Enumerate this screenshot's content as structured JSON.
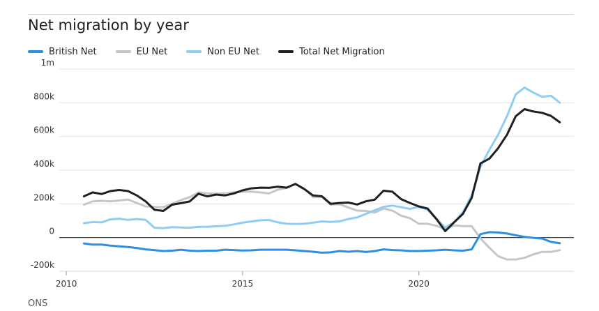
{
  "title": "Net migration by year",
  "source": "ONS",
  "colors": {
    "british": "#2e8fe0",
    "eu": "#c4c6c9",
    "noneu": "#8fcdf3",
    "total": "#1f1f1f",
    "grid": "#e3e3e3",
    "zero": "#222222"
  },
  "chart_data": {
    "type": "line",
    "title": "Net migration by year",
    "xlabel": "",
    "ylabel": "",
    "xlim": [
      2009.8,
      2024.4
    ],
    "ylim": [
      -200000,
      1000000
    ],
    "grid": true,
    "legend_position": "top-left",
    "x_ticks": [
      {
        "value": 2010,
        "label": "2010"
      },
      {
        "value": 2015,
        "label": "2015"
      },
      {
        "value": 2020,
        "label": "2020"
      }
    ],
    "y_ticks": [
      {
        "value": 1000000,
        "label": "1m"
      },
      {
        "value": 800000,
        "label": "800k"
      },
      {
        "value": 600000,
        "label": "600k"
      },
      {
        "value": 400000,
        "label": "400k"
      },
      {
        "value": 200000,
        "label": "200k"
      },
      {
        "value": 0,
        "label": "0"
      },
      {
        "value": -200000,
        "label": "-200k"
      }
    ],
    "series": [
      {
        "key": "british",
        "name": "British Net",
        "points": [
          [
            2010.5,
            -35000
          ],
          [
            2010.75,
            -42000
          ],
          [
            2011.0,
            -42000
          ],
          [
            2011.25,
            -48000
          ],
          [
            2011.5,
            -52000
          ],
          [
            2011.75,
            -56000
          ],
          [
            2012.0,
            -62000
          ],
          [
            2012.25,
            -70000
          ],
          [
            2012.5,
            -75000
          ],
          [
            2012.75,
            -80000
          ],
          [
            2013.0,
            -78000
          ],
          [
            2013.25,
            -72000
          ],
          [
            2013.5,
            -78000
          ],
          [
            2013.75,
            -80000
          ],
          [
            2014.0,
            -78000
          ],
          [
            2014.25,
            -78000
          ],
          [
            2014.5,
            -72000
          ],
          [
            2014.75,
            -74000
          ],
          [
            2015.0,
            -77000
          ],
          [
            2015.25,
            -76000
          ],
          [
            2015.5,
            -72000
          ],
          [
            2015.75,
            -72000
          ],
          [
            2016.0,
            -72000
          ],
          [
            2016.25,
            -72000
          ],
          [
            2016.5,
            -76000
          ],
          [
            2016.75,
            -80000
          ],
          [
            2017.0,
            -84000
          ],
          [
            2017.25,
            -90000
          ],
          [
            2017.5,
            -88000
          ],
          [
            2017.75,
            -80000
          ],
          [
            2018.0,
            -84000
          ],
          [
            2018.25,
            -80000
          ],
          [
            2018.5,
            -86000
          ],
          [
            2018.75,
            -80000
          ],
          [
            2019.0,
            -70000
          ],
          [
            2019.25,
            -74000
          ],
          [
            2019.5,
            -76000
          ],
          [
            2019.75,
            -80000
          ],
          [
            2020.0,
            -80000
          ],
          [
            2020.25,
            -78000
          ],
          [
            2020.5,
            -76000
          ],
          [
            2020.75,
            -72000
          ],
          [
            2021.0,
            -76000
          ],
          [
            2021.25,
            -78000
          ],
          [
            2021.5,
            -70000
          ],
          [
            2021.75,
            20000
          ],
          [
            2022.0,
            32000
          ],
          [
            2022.25,
            30000
          ],
          [
            2022.5,
            24000
          ],
          [
            2022.75,
            14000
          ],
          [
            2023.0,
            4000
          ],
          [
            2023.25,
            -2000
          ],
          [
            2023.5,
            -6000
          ],
          [
            2023.75,
            -26000
          ],
          [
            2024.0,
            -34000
          ]
        ]
      },
      {
        "key": "eu",
        "name": "EU Net",
        "points": [
          [
            2010.5,
            195000
          ],
          [
            2010.75,
            215000
          ],
          [
            2011.0,
            218000
          ],
          [
            2011.25,
            215000
          ],
          [
            2011.5,
            220000
          ],
          [
            2011.75,
            226000
          ],
          [
            2012.0,
            205000
          ],
          [
            2012.25,
            185000
          ],
          [
            2012.5,
            182000
          ],
          [
            2012.75,
            180000
          ],
          [
            2013.0,
            200000
          ],
          [
            2013.25,
            222000
          ],
          [
            2013.5,
            240000
          ],
          [
            2013.75,
            268000
          ],
          [
            2014.0,
            262000
          ],
          [
            2014.25,
            260000
          ],
          [
            2014.5,
            262000
          ],
          [
            2014.75,
            268000
          ],
          [
            2015.0,
            272000
          ],
          [
            2015.25,
            272000
          ],
          [
            2015.5,
            268000
          ],
          [
            2015.75,
            262000
          ],
          [
            2016.0,
            284000
          ],
          [
            2016.25,
            295000
          ],
          [
            2016.5,
            318000
          ],
          [
            2016.75,
            290000
          ],
          [
            2017.0,
            240000
          ],
          [
            2017.25,
            242000
          ],
          [
            2017.5,
            195000
          ],
          [
            2017.75,
            198000
          ],
          [
            2018.0,
            178000
          ],
          [
            2018.25,
            160000
          ],
          [
            2018.5,
            158000
          ],
          [
            2018.75,
            148000
          ],
          [
            2019.0,
            172000
          ],
          [
            2019.25,
            160000
          ],
          [
            2019.5,
            130000
          ],
          [
            2019.75,
            115000
          ],
          [
            2020.0,
            82000
          ],
          [
            2020.25,
            82000
          ],
          [
            2020.5,
            70000
          ],
          [
            2020.75,
            50000
          ],
          [
            2021.0,
            72000
          ],
          [
            2021.25,
            68000
          ],
          [
            2021.5,
            68000
          ],
          [
            2021.75,
            -5000
          ],
          [
            2022.0,
            -60000
          ],
          [
            2022.25,
            -110000
          ],
          [
            2022.5,
            -130000
          ],
          [
            2022.75,
            -130000
          ],
          [
            2023.0,
            -120000
          ],
          [
            2023.25,
            -100000
          ],
          [
            2023.5,
            -85000
          ],
          [
            2023.75,
            -85000
          ],
          [
            2024.0,
            -75000
          ]
        ]
      },
      {
        "key": "noneu",
        "name": "Non EU Net",
        "points": [
          [
            2010.5,
            85000
          ],
          [
            2010.75,
            92000
          ],
          [
            2011.0,
            90000
          ],
          [
            2011.25,
            108000
          ],
          [
            2011.5,
            112000
          ],
          [
            2011.75,
            105000
          ],
          [
            2012.0,
            110000
          ],
          [
            2012.25,
            105000
          ],
          [
            2012.5,
            58000
          ],
          [
            2012.75,
            56000
          ],
          [
            2013.0,
            62000
          ],
          [
            2013.25,
            60000
          ],
          [
            2013.5,
            58000
          ],
          [
            2013.75,
            64000
          ],
          [
            2014.0,
            64000
          ],
          [
            2014.25,
            67000
          ],
          [
            2014.5,
            70000
          ],
          [
            2014.75,
            78000
          ],
          [
            2015.0,
            88000
          ],
          [
            2015.25,
            96000
          ],
          [
            2015.5,
            102000
          ],
          [
            2015.75,
            104000
          ],
          [
            2016.0,
            90000
          ],
          [
            2016.25,
            82000
          ],
          [
            2016.5,
            80000
          ],
          [
            2016.75,
            82000
          ],
          [
            2017.0,
            88000
          ],
          [
            2017.25,
            96000
          ],
          [
            2017.5,
            93000
          ],
          [
            2017.75,
            96000
          ],
          [
            2018.0,
            110000
          ],
          [
            2018.25,
            120000
          ],
          [
            2018.5,
            140000
          ],
          [
            2018.75,
            162000
          ],
          [
            2019.0,
            182000
          ],
          [
            2019.25,
            190000
          ],
          [
            2019.5,
            180000
          ],
          [
            2019.75,
            170000
          ],
          [
            2020.0,
            182000
          ],
          [
            2020.25,
            166000
          ],
          [
            2020.5,
            110000
          ],
          [
            2020.75,
            60000
          ],
          [
            2021.0,
            90000
          ],
          [
            2021.25,
            150000
          ],
          [
            2021.5,
            250000
          ],
          [
            2021.75,
            420000
          ],
          [
            2022.0,
            520000
          ],
          [
            2022.25,
            610000
          ],
          [
            2022.5,
            720000
          ],
          [
            2022.75,
            850000
          ],
          [
            2023.0,
            890000
          ],
          [
            2023.25,
            860000
          ],
          [
            2023.5,
            835000
          ],
          [
            2023.75,
            842000
          ],
          [
            2024.0,
            800000
          ]
        ]
      },
      {
        "key": "total",
        "name": "Total Net Migration",
        "points": [
          [
            2010.5,
            245000
          ],
          [
            2010.75,
            268000
          ],
          [
            2011.0,
            258000
          ],
          [
            2011.25,
            276000
          ],
          [
            2011.5,
            282000
          ],
          [
            2011.75,
            276000
          ],
          [
            2012.0,
            250000
          ],
          [
            2012.25,
            215000
          ],
          [
            2012.5,
            165000
          ],
          [
            2012.75,
            158000
          ],
          [
            2013.0,
            195000
          ],
          [
            2013.25,
            204000
          ],
          [
            2013.5,
            214000
          ],
          [
            2013.75,
            260000
          ],
          [
            2014.0,
            244000
          ],
          [
            2014.25,
            255000
          ],
          [
            2014.5,
            250000
          ],
          [
            2014.75,
            262000
          ],
          [
            2015.0,
            280000
          ],
          [
            2015.25,
            292000
          ],
          [
            2015.5,
            296000
          ],
          [
            2015.75,
            295000
          ],
          [
            2016.0,
            302000
          ],
          [
            2016.25,
            296000
          ],
          [
            2016.5,
            318000
          ],
          [
            2016.75,
            288000
          ],
          [
            2017.0,
            250000
          ],
          [
            2017.25,
            245000
          ],
          [
            2017.5,
            200000
          ],
          [
            2017.75,
            205000
          ],
          [
            2018.0,
            208000
          ],
          [
            2018.25,
            196000
          ],
          [
            2018.5,
            215000
          ],
          [
            2018.75,
            225000
          ],
          [
            2019.0,
            278000
          ],
          [
            2019.25,
            272000
          ],
          [
            2019.5,
            228000
          ],
          [
            2019.75,
            205000
          ],
          [
            2020.0,
            185000
          ],
          [
            2020.25,
            172000
          ],
          [
            2020.5,
            110000
          ],
          [
            2020.75,
            38000
          ],
          [
            2021.0,
            90000
          ],
          [
            2021.25,
            140000
          ],
          [
            2021.5,
            235000
          ],
          [
            2021.75,
            440000
          ],
          [
            2022.0,
            468000
          ],
          [
            2022.25,
            530000
          ],
          [
            2022.5,
            610000
          ],
          [
            2022.75,
            720000
          ],
          [
            2023.0,
            762000
          ],
          [
            2023.25,
            748000
          ],
          [
            2023.5,
            740000
          ],
          [
            2023.75,
            722000
          ],
          [
            2024.0,
            684000
          ]
        ]
      }
    ]
  }
}
